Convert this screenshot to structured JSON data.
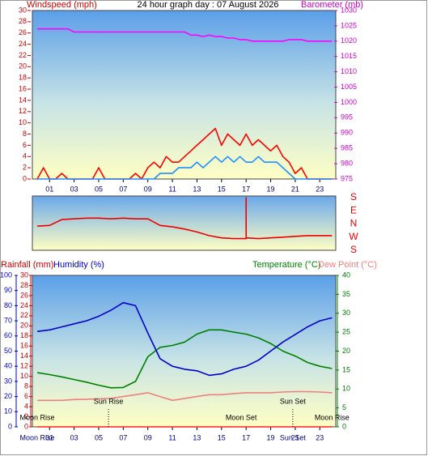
{
  "chart_data": [
    {
      "type": "line",
      "title": "24 hour graph day : 07 August 2026",
      "ylabel": "Windspeed (mph)",
      "y2label": "Barometer (mb)",
      "x": [
        0,
        0.5,
        1,
        1.5,
        2,
        2.5,
        3,
        3.5,
        4,
        4.5,
        5,
        5.5,
        6,
        6.5,
        7,
        7.5,
        8,
        8.5,
        9,
        9.5,
        10,
        10.5,
        11,
        11.5,
        12,
        12.5,
        13,
        13.5,
        14,
        14.5,
        15,
        15.5,
        16,
        16.5,
        17,
        17.5,
        18,
        18.5,
        19,
        19.5,
        20,
        20.5,
        21,
        21.5,
        22,
        22.5,
        23,
        23.5,
        24
      ],
      "xlim": [
        -0.4,
        24.3
      ],
      "xticks": [
        {
          "value": 1,
          "label": "01"
        },
        {
          "value": 3,
          "label": "03"
        },
        {
          "value": 5,
          "label": "05"
        },
        {
          "value": 7,
          "label": "07"
        },
        {
          "value": 9,
          "label": "09"
        },
        11,
        13,
        15,
        17,
        19,
        21,
        23
      ],
      "ylim": [
        0,
        30
      ],
      "yticks": [
        0,
        2,
        4,
        6,
        8,
        10,
        12,
        14,
        16,
        18,
        20,
        22,
        24,
        26,
        28,
        30
      ],
      "y2lim": [
        975,
        1030
      ],
      "y2ticks": [
        975,
        980,
        985,
        990,
        995,
        1000,
        1005,
        1010,
        1015,
        1020,
        1025,
        1030
      ],
      "series": [
        {
          "color": "#ff0000",
          "values": [
            0,
            2,
            0,
            0,
            1,
            0,
            0,
            0,
            0,
            0,
            2,
            0,
            0,
            0,
            0,
            0,
            1,
            0,
            2,
            3,
            2,
            4,
            3,
            3,
            4,
            5,
            6,
            7,
            8,
            9,
            6,
            8,
            7,
            6,
            8,
            6,
            7,
            6,
            5,
            6,
            4,
            3,
            1,
            2,
            0,
            0,
            0,
            0,
            0
          ]
        },
        {
          "color": "#1e90ff",
          "values": [
            0,
            0,
            0,
            0,
            0,
            0,
            0,
            0,
            0,
            0,
            0,
            0,
            0,
            0,
            0,
            0,
            0,
            0,
            0,
            0,
            1,
            1,
            1,
            2,
            2,
            2,
            3,
            2,
            3,
            4,
            3,
            4,
            3,
            4,
            3,
            3,
            4,
            3,
            3,
            3,
            2,
            1,
            0,
            0,
            0,
            0,
            0,
            0,
            0
          ]
        },
        {
          "color": "#ff00ff",
          "axis": "y2",
          "values": [
            1024,
            1024,
            1024,
            1024,
            1024,
            1024,
            1023,
            1023,
            1023,
            1023,
            1023,
            1023,
            1023,
            1023,
            1023,
            1023,
            1023,
            1023,
            1023,
            1023,
            1023,
            1023,
            1023,
            1023,
            1023,
            1022,
            1022,
            1021.5,
            1022,
            1021.5,
            1021.5,
            1021,
            1021,
            1020.5,
            1020.5,
            1020,
            1020,
            1020,
            1020,
            1020,
            1020,
            1020.5,
            1020.5,
            1020.5,
            1020,
            1020,
            1020,
            1020,
            1020
          ]
        }
      ]
    },
    {
      "type": "line",
      "x": [
        0,
        1,
        2,
        3,
        4,
        5,
        6,
        7,
        8,
        9,
        10,
        11,
        12,
        13,
        14,
        15,
        16,
        17,
        17,
        17,
        18,
        19,
        20,
        21,
        22,
        23,
        24
      ],
      "xlim": [
        -0.4,
        24.3
      ],
      "ylim": [
        -180,
        180
      ],
      "yticks": [
        {
          "value": 180,
          "label": "S"
        },
        {
          "value": 90,
          "label": "E"
        },
        {
          "value": 0,
          "label": "N"
        },
        {
          "value": -90,
          "label": "W"
        },
        {
          "value": -180,
          "label": "S"
        }
      ],
      "series": [
        {
          "color": "#ee0000",
          "values": [
            -15,
            -10,
            30,
            35,
            40,
            40,
            35,
            40,
            35,
            35,
            -10,
            -20,
            -35,
            -55,
            -80,
            -95,
            -100,
            -100,
            180,
            -95,
            -100,
            -95,
            -90,
            -85,
            -80,
            -80,
            -80
          ]
        }
      ]
    },
    {
      "type": "line",
      "ylabel": "Humidity (%)",
      "y2label": "Temperature (°C)",
      "y3label": "Rainfall (mm)",
      "dewpoint_label": "Dew Point (°C)",
      "x": [
        0,
        1,
        2,
        3,
        4,
        5,
        6,
        7,
        8,
        9,
        10,
        11,
        12,
        13,
        14,
        15,
        16,
        17,
        18,
        19,
        20,
        21,
        22,
        23,
        24
      ],
      "xlim": [
        -0.4,
        24.3
      ],
      "xticks": [
        {
          "value": 1,
          "label": "01"
        },
        {
          "value": 3,
          "label": "03"
        },
        {
          "value": 5,
          "label": "05"
        },
        {
          "value": 7,
          "label": "07"
        },
        {
          "value": 9,
          "label": "09"
        },
        11,
        13,
        15,
        17,
        19,
        21,
        23
      ],
      "ylim": [
        0,
        100
      ],
      "yticks": [
        0,
        10,
        20,
        30,
        40,
        50,
        60,
        70,
        80,
        90,
        100
      ],
      "y2lim": [
        0,
        40
      ],
      "y2ticks": [
        0,
        5,
        10,
        15,
        20,
        25,
        30,
        35,
        40
      ],
      "y3lim": [
        0,
        30
      ],
      "y3ticks": [
        0,
        2,
        4,
        6,
        8,
        10,
        12,
        14,
        16,
        18,
        20,
        22,
        24,
        26,
        28,
        30
      ],
      "series": [
        {
          "color": "#ff2020",
          "axis": "y3",
          "values": [
            0,
            0,
            0,
            0,
            0,
            0,
            0,
            0,
            0,
            0,
            0,
            0,
            0,
            0,
            0,
            0,
            0,
            0,
            0,
            0,
            0,
            0,
            0,
            0,
            0
          ]
        },
        {
          "color": "#f08080",
          "axis": "y2",
          "values": [
            7,
            7,
            7,
            7.2,
            7.3,
            7.4,
            7.5,
            8,
            8.5,
            9,
            8,
            7,
            7.5,
            8,
            8.5,
            8.5,
            8.8,
            9,
            9,
            9,
            9.2,
            9.3,
            9.3,
            9.2,
            9
          ]
        },
        {
          "color": "#008000",
          "axis": "y2",
          "values": [
            14.3,
            13.8,
            13.2,
            12.5,
            11.8,
            11,
            10.3,
            10.4,
            12,
            18.5,
            21,
            21.5,
            22.4,
            24.5,
            25.6,
            25.6,
            25,
            24.5,
            23.5,
            22,
            20,
            18.7,
            17,
            16,
            15.4
          ]
        },
        {
          "color": "#0000cc",
          "values": [
            63,
            64,
            66,
            68,
            70,
            73,
            77,
            82,
            80,
            62,
            45,
            40,
            38,
            37,
            34,
            35,
            38,
            40,
            44,
            50,
            56,
            61,
            66,
            70,
            72
          ]
        }
      ],
      "annotations": [
        {
          "text": "Moon Rise",
          "x": 0,
          "row": "low"
        },
        {
          "text": "Sun Rise",
          "x": 5.8,
          "row": "high",
          "line": true
        },
        {
          "text": "Moon Set",
          "x": 16.6,
          "row": "low"
        },
        {
          "text": "Sun Set",
          "x": 20.8,
          "row": "high",
          "line": true
        },
        {
          "text": "Moon Rise",
          "x": 24,
          "row": "low"
        },
        {
          "text": "Moon Rise",
          "x": 0,
          "row": "axis"
        },
        {
          "text": "Sun Set",
          "x": 20.8,
          "row": "axis"
        }
      ]
    }
  ]
}
